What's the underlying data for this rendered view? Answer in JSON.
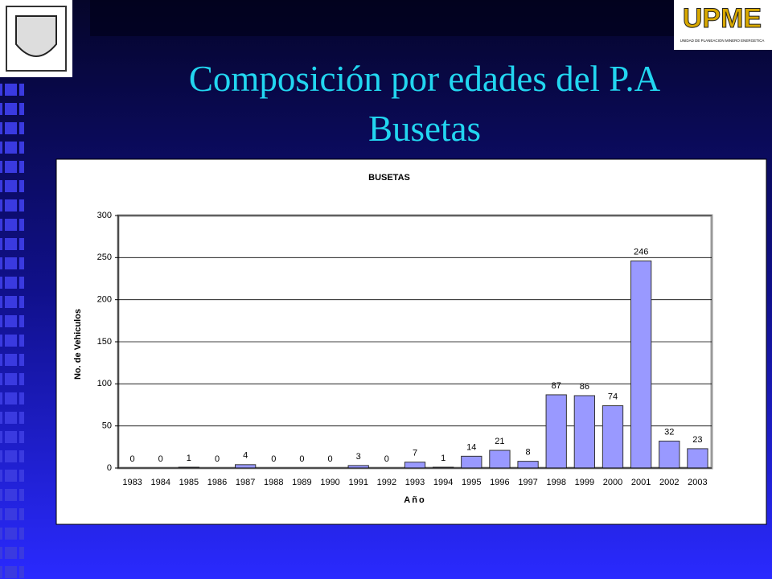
{
  "slide": {
    "title_lines": [
      "Composición por edades del P.A",
      "Busetas"
    ]
  },
  "logo": {
    "name": "UPME",
    "subtitle": "UNIDAD DE PLANEACION MINERO ENERGETICA"
  },
  "chart_data": {
    "type": "bar",
    "title": "BUSETAS",
    "x_label": "Año",
    "y_label": "No. de Vehiculos",
    "categories": [
      "1983",
      "1984",
      "1985",
      "1986",
      "1987",
      "1988",
      "1989",
      "1990",
      "1991",
      "1992",
      "1993",
      "1994",
      "1995",
      "1996",
      "1997",
      "1998",
      "1999",
      "2000",
      "2001",
      "2002",
      "2003"
    ],
    "values": [
      0,
      0,
      1,
      0,
      4,
      0,
      0,
      0,
      3,
      0,
      7,
      1,
      14,
      21,
      8,
      87,
      86,
      74,
      246,
      32,
      23
    ],
    "color": "#9999ff",
    "ylim": [
      0,
      300
    ],
    "yticks": [
      0,
      50,
      100,
      150,
      200,
      250,
      300
    ],
    "grid": true
  }
}
